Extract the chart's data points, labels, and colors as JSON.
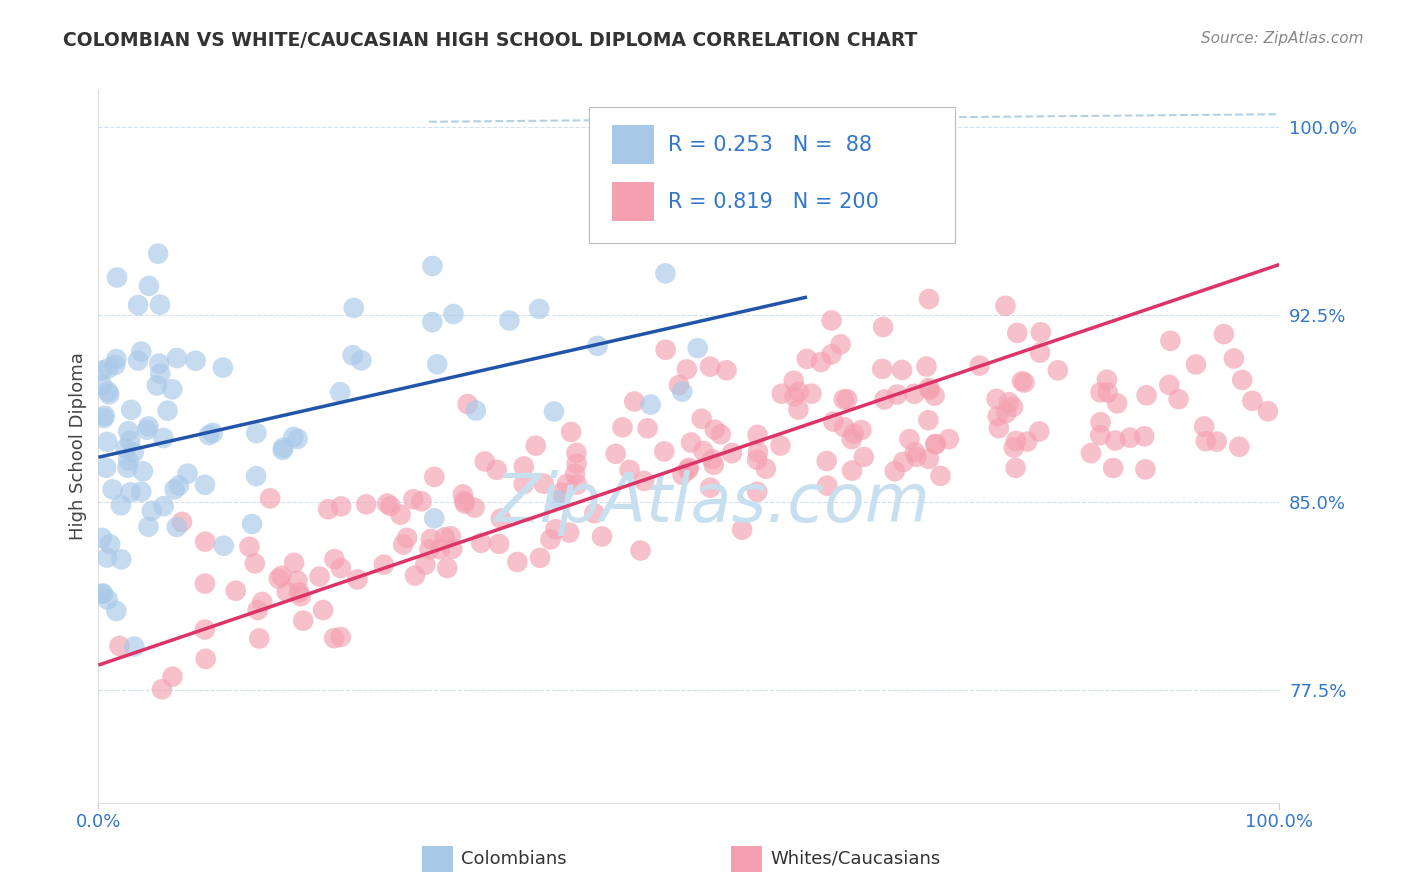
{
  "title": "COLOMBIAN VS WHITE/CAUCASIAN HIGH SCHOOL DIPLOMA CORRELATION CHART",
  "source": "Source: ZipAtlas.com",
  "ylabel": "High School Diploma",
  "legend_blue_r": "0.253",
  "legend_blue_n": "88",
  "legend_pink_r": "0.819",
  "legend_pink_n": "200",
  "blue_color": "#A8C8E8",
  "pink_color": "#F4A0B0",
  "blue_line_color": "#2255AA",
  "pink_line_color": "#DD3366",
  "diag_line_color": "#AACCDD",
  "watermark_color": "#C8DFF0",
  "background_color": "#FFFFFF",
  "ytick_positions": [
    77.5,
    85.0,
    92.5,
    100.0
  ],
  "ytick_labels": [
    "77.5%",
    "85.0%",
    "92.5%",
    "100.0%"
  ],
  "ymin": 73.0,
  "ymax": 101.5,
  "xmin": 0.0,
  "xmax": 100.0,
  "blue_line_x0": 0.0,
  "blue_line_y0": 86.8,
  "blue_line_x1": 60.0,
  "blue_line_y1": 93.2,
  "pink_line_x0": 0.0,
  "pink_line_y0": 78.5,
  "pink_line_x1": 100.0,
  "pink_line_y1": 94.5,
  "diag_line_x0": 30.0,
  "diag_line_y0": 100.5,
  "diag_line_x1": 100.0,
  "diag_line_y1": 100.5,
  "seed": 12345
}
